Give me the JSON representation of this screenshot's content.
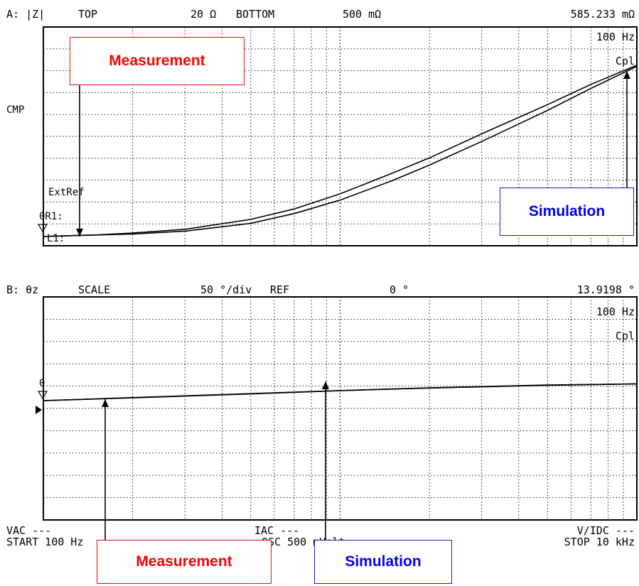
{
  "panel_a": {
    "trace_label": "A: |Z|",
    "top_label": "TOP",
    "top_value": "20 Ω",
    "bottom_label": "BOTTOM",
    "bottom_value": "500 mΩ",
    "marker_value": "585.233 mΩ",
    "marker_freq": "100 Hz",
    "mode": "Cpl",
    "cmp_label": "CMP",
    "extref_label": "ExtRef",
    "or1_label": "0R1:",
    "l1_label": "L1:"
  },
  "panel_b": {
    "trace_label": "B: θz",
    "scale_label": "SCALE",
    "scale_value": "50 °/div",
    "ref_label": "REF",
    "ref_value": "0 °",
    "marker_value": "13.9198 °",
    "marker_freq": "100 Hz",
    "mode": "Cpl",
    "ref_marker": "0"
  },
  "footer": {
    "vac": "VAC ---",
    "iac": "IAC ---",
    "vidc": "V/IDC ---",
    "start": "START 100 Hz",
    "osc": "OSC 500 mVolt",
    "stop": "STOP 10 kHz"
  },
  "annotations": {
    "top_measurement": "Measurement",
    "top_simulation": "Simulation",
    "bottom_measurement": "Measurement",
    "bottom_simulation": "Simulation"
  },
  "colors": {
    "measurement": "#ff0000",
    "simulation": "#0000ff",
    "trace": "#000000",
    "grid": "#000000"
  },
  "chart_data": [
    {
      "type": "line",
      "x_scale": "log",
      "xlim": [
        100,
        10000
      ],
      "y_scale": "log",
      "ylim": [
        0.5,
        20
      ],
      "grid": true,
      "series": [
        {
          "x": [
            100,
            150,
            200,
            300,
            500,
            700,
            1000,
            1500,
            2000,
            3000,
            5000,
            7000,
            10000
          ],
          "y": [
            0.585,
            0.6,
            0.62,
            0.66,
            0.78,
            0.93,
            1.2,
            1.7,
            2.2,
            3.3,
            5.4,
            7.6,
            10.5
          ]
        },
        {
          "x": [
            100,
            150,
            200,
            300,
            500,
            700,
            1000,
            1500,
            2000,
            3000,
            5000,
            7000,
            10000
          ],
          "y": [
            0.585,
            0.6,
            0.61,
            0.64,
            0.73,
            0.86,
            1.08,
            1.5,
            1.95,
            2.9,
            4.9,
            7.1,
            10.3
          ]
        }
      ]
    },
    {
      "type": "line",
      "x_scale": "log",
      "xlim": [
        100,
        10000
      ],
      "ylim": [
        -200,
        200
      ],
      "grid": true,
      "series": [
        {
          "x": [
            100,
            200,
            500,
            1000,
            2000,
            5000,
            10000
          ],
          "y": [
            13.9,
            19,
            26,
            32,
            37,
            42,
            44
          ]
        },
        {
          "x": [
            100,
            200,
            500,
            1000,
            2000,
            5000,
            10000
          ],
          "y": [
            13.9,
            19.5,
            26.5,
            32,
            36.5,
            41.5,
            44
          ]
        }
      ]
    }
  ]
}
